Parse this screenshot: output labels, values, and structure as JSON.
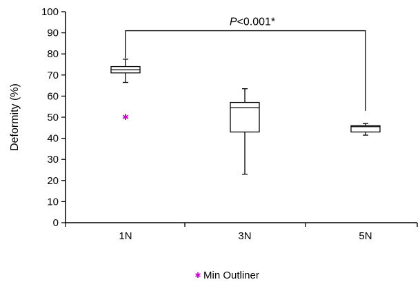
{
  "chart_data": {
    "type": "box",
    "ylabel": "Deformity (%)",
    "xlabel": "",
    "ylim": [
      0,
      100
    ],
    "yticks": [
      0,
      10,
      20,
      30,
      40,
      50,
      60,
      70,
      80,
      90,
      100
    ],
    "categories": [
      "1N",
      "3N",
      "5N"
    ],
    "boxes": [
      {
        "category": "1N",
        "whisker_low": 66.5,
        "q1": 71,
        "median": 72.5,
        "q3": 74,
        "whisker_high": 77.5
      },
      {
        "category": "3N",
        "whisker_low": 23,
        "q1": 43,
        "median": 54.5,
        "q3": 57,
        "whisker_high": 63.5
      },
      {
        "category": "5N",
        "whisker_low": 41.5,
        "q1": 43,
        "median": 45.5,
        "q3": 46,
        "whisker_high": 47
      }
    ],
    "outliers": [
      {
        "category": "1N",
        "value": 50
      }
    ],
    "legend": {
      "label": "Min Outliner",
      "position": "bottom-center",
      "marker_color": "#cc00cc"
    },
    "annotation": {
      "text_italic": "P",
      "text_rest": "<0.001*",
      "from_category": "1N",
      "to_category": "5N",
      "bracket_top": 91,
      "left_bottom": 78,
      "right_bottom": 53
    },
    "grid": false
  }
}
